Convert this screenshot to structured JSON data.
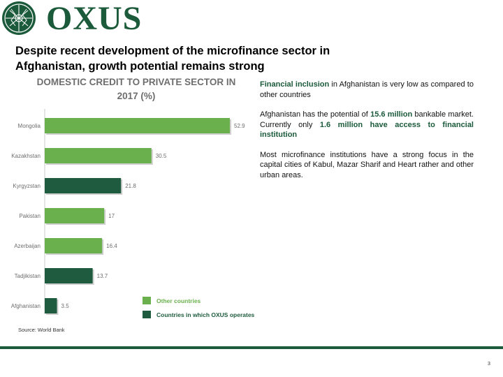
{
  "logo": {
    "text": "OXUS"
  },
  "headline": "Despite recent development of the microfinance sector in Afghanistan, growth potential remains strong",
  "bullets": [
    {
      "parts": [
        {
          "text": "Financial inclusion",
          "em": true
        },
        {
          "text": " in Afghanistan is very low as compared to other countries",
          "em": false
        }
      ]
    },
    {
      "parts": [
        {
          "text": "Afghanistan has the potential of ",
          "em": false
        },
        {
          "text": "15.6 million",
          "em": true
        },
        {
          "text": " bankable market. Currently only ",
          "em": false
        },
        {
          "text": "1.6 million have access to financial institution",
          "em": true
        }
      ]
    },
    {
      "parts": [
        {
          "text": "Most microfinance institutions have a strong focus in the capital cities of Kabul, Mazar Sharif and Heart rather and other urban areas.",
          "em": false
        }
      ]
    }
  ],
  "source": "Source: World Bank",
  "page_number": "3",
  "colors": {
    "brand": "#1b5a3a",
    "other": "#6ab04c",
    "operates": "#1f5c3f"
  },
  "chart_data": {
    "type": "bar",
    "orientation": "horizontal",
    "title": "DOMESTIC CREDIT TO PRIVATE SECTOR IN 2017 (%)",
    "categories": [
      "Mongolia",
      "Kazakhstan",
      "Kyrgyzstan",
      "Pakistan",
      "Azerbaijan",
      "Tadjikistan",
      "Afghanistan"
    ],
    "values": [
      52.9,
      30.5,
      21.8,
      17,
      16.4,
      13.7,
      3.5
    ],
    "value_labels": [
      "52.9",
      "30.5",
      "21.8",
      "17",
      "16.4",
      "13.7",
      "3.5"
    ],
    "groups": [
      "other",
      "other",
      "operates",
      "other",
      "other",
      "operates",
      "operates"
    ],
    "legend": [
      {
        "key": "other",
        "label": "Other countries"
      },
      {
        "key": "operates",
        "label": "Countries in which OXUS operates"
      }
    ],
    "legend_position": "bottom-right",
    "xlim": [
      0,
      55
    ],
    "grid": false
  }
}
